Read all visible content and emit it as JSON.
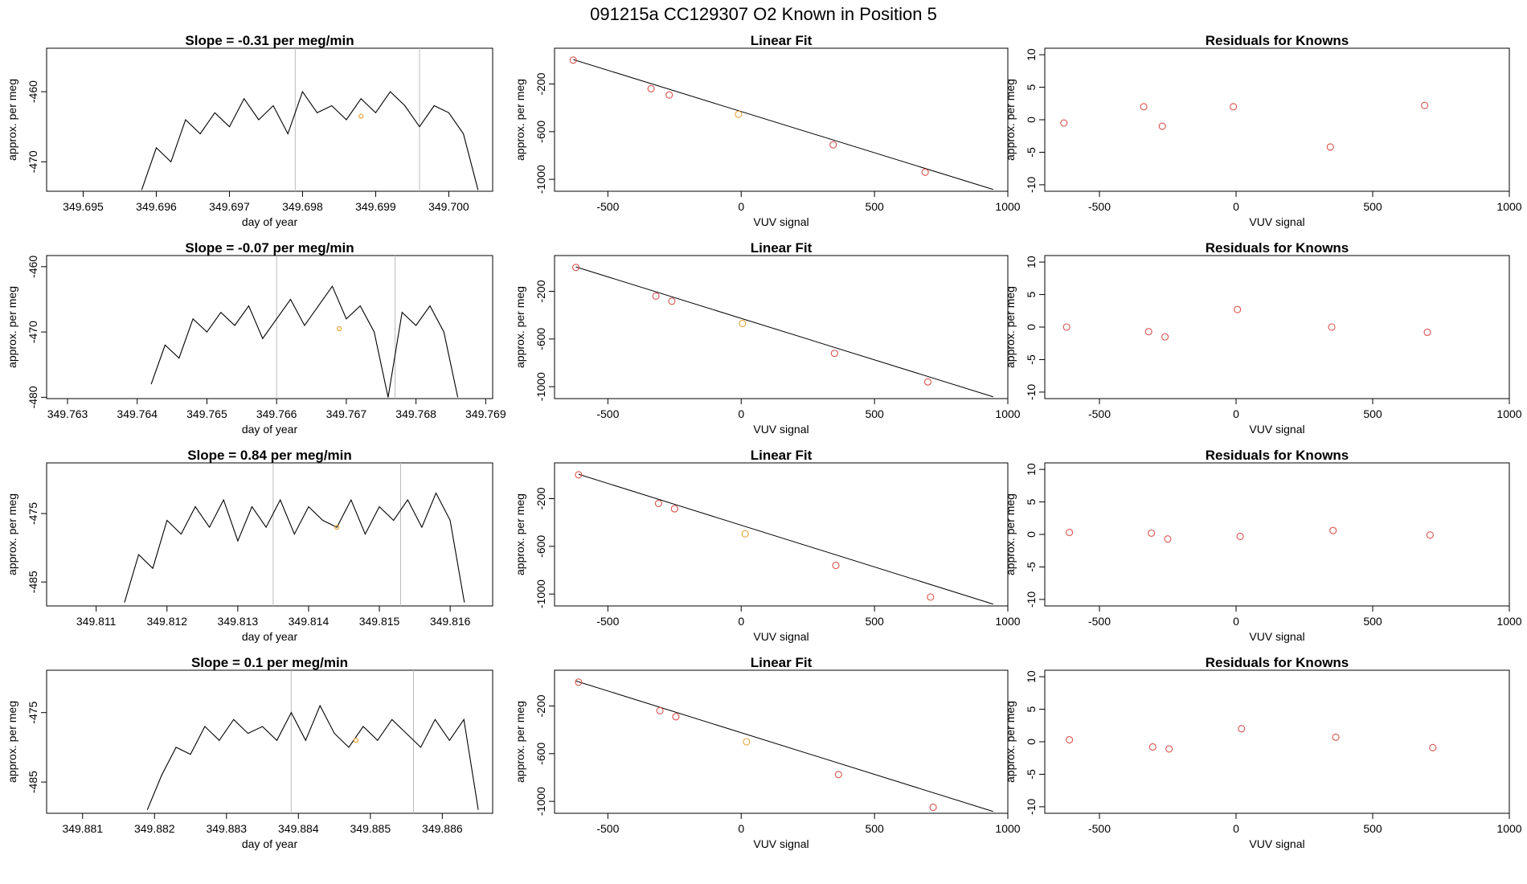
{
  "figure": {
    "title": "091215a      CC129307   O2 Known in Position  5"
  },
  "chart_data": [
    {
      "panel": "timeseries-1",
      "type": "line",
      "title": "Slope =  -0.31  per meg/min",
      "xlabel": "day of year",
      "ylabel": "approx. per meg",
      "xlim": [
        349.6945,
        349.7006
      ],
      "ylim": [
        -474.2,
        -453.8
      ],
      "xticks": [
        "349.695",
        "349.696",
        "349.697",
        "349.698",
        "349.699",
        "349.700"
      ],
      "yticks": [
        -460,
        -470
      ],
      "vlines": [
        349.6979,
        349.6996
      ],
      "highlight_point": {
        "x": 349.6988,
        "y": -463.5,
        "color": "#e8a33a"
      },
      "x": [
        349.6958,
        349.696,
        349.6962,
        349.6964,
        349.6966,
        349.6968,
        349.697,
        349.6972,
        349.6974,
        349.6976,
        349.6978,
        349.698,
        349.6982,
        349.6984,
        349.6986,
        349.6988,
        349.699,
        349.6992,
        349.6994,
        349.6996,
        349.6998,
        349.7,
        349.7002,
        349.7004
      ],
      "y": [
        -474,
        -468,
        -470,
        -464,
        -466,
        -463,
        -465,
        -461,
        -464,
        -462,
        -466,
        -460,
        -463,
        -462,
        -464,
        -461,
        -463,
        -460,
        -462,
        -465,
        -462,
        -463,
        -466,
        -474
      ]
    },
    {
      "panel": "linearfit-1",
      "type": "scatter",
      "title": "Linear Fit",
      "xlabel": "VUV signal",
      "ylabel": "approx. per meg",
      "xlim": [
        -700,
        1000
      ],
      "ylim": [
        -1100,
        100
      ],
      "xticks": [
        -500,
        0,
        500,
        1000
      ],
      "yticks": [
        -200,
        -600,
        -1000
      ],
      "fit_line": [
        [
          -630,
          5
        ],
        [
          945,
          -1085
        ]
      ],
      "points": [
        [
          -630,
          0
        ],
        [
          -338,
          -240
        ],
        [
          -270,
          -292
        ],
        [
          -10,
          -455
        ],
        [
          345,
          -710
        ],
        [
          690,
          -940
        ]
      ],
      "highlight_index": 3
    },
    {
      "panel": "residuals-1",
      "type": "scatter",
      "title": "Residuals for Knowns",
      "xlabel": "VUV signal",
      "ylabel": "approx. per meg",
      "xlim": [
        -700,
        1000
      ],
      "ylim": [
        -11,
        11
      ],
      "xticks": [
        -500,
        0,
        500,
        1000
      ],
      "yticks": [
        10,
        5,
        0,
        -5,
        -10
      ],
      "points": [
        [
          -630,
          -0.5
        ],
        [
          -338,
          2
        ],
        [
          -270,
          -1
        ],
        [
          -10,
          2
        ],
        [
          345,
          -4.2
        ],
        [
          690,
          2.2
        ]
      ]
    },
    {
      "panel": "timeseries-2",
      "type": "line",
      "title": "Slope =  -0.07  per meg/min",
      "xlabel": "day of year",
      "ylabel": "approx. per meg",
      "xlim": [
        349.7627,
        349.7691
      ],
      "ylim": [
        -480.2,
        -458.3
      ],
      "xticks": [
        "349.763",
        "349.764",
        "349.765",
        "349.766",
        "349.767",
        "349.768",
        "349.769"
      ],
      "yticks": [
        -460,
        -470,
        -480
      ],
      "vlines": [
        349.766,
        349.7677
      ],
      "highlight_point": {
        "x": 349.7669,
        "y": -469.5,
        "color": "#e8a33a"
      },
      "x": [
        349.7642,
        349.7644,
        349.7646,
        349.7648,
        349.765,
        349.7652,
        349.7654,
        349.7656,
        349.7658,
        349.766,
        349.7662,
        349.7664,
        349.7666,
        349.7668,
        349.767,
        349.7672,
        349.7674,
        349.7676,
        349.7678,
        349.768,
        349.7682,
        349.7684,
        349.7686
      ],
      "y": [
        -478,
        -472,
        -474,
        -468,
        -470,
        -467,
        -469,
        -466,
        -471,
        -468,
        -465,
        -469,
        -466,
        -463,
        -468,
        -466,
        -470,
        -480,
        -467,
        -469,
        -466,
        -470,
        -480
      ]
    },
    {
      "panel": "linearfit-2",
      "type": "scatter",
      "title": "Linear Fit",
      "xlabel": "VUV signal",
      "ylabel": "approx. per meg",
      "xlim": [
        -700,
        1000
      ],
      "ylim": [
        -1100,
        100
      ],
      "xticks": [
        -500,
        0,
        500,
        1000
      ],
      "yticks": [
        -200,
        -600,
        -1000
      ],
      "fit_line": [
        [
          -620,
          5
        ],
        [
          945,
          -1085
        ]
      ],
      "points": [
        [
          -620,
          0
        ],
        [
          -320,
          -240
        ],
        [
          -260,
          -283
        ],
        [
          5,
          -470
        ],
        [
          350,
          -720
        ],
        [
          700,
          -960
        ]
      ],
      "highlight_index": 3
    },
    {
      "panel": "residuals-2",
      "type": "scatter",
      "title": "Residuals for Knowns",
      "xlabel": "VUV signal",
      "ylabel": "approx. per meg",
      "xlim": [
        -700,
        1000
      ],
      "ylim": [
        -11,
        11
      ],
      "xticks": [
        -500,
        0,
        500,
        1000
      ],
      "yticks": [
        10,
        5,
        0,
        -5,
        -10
      ],
      "points": [
        [
          -620,
          0
        ],
        [
          -320,
          -0.7
        ],
        [
          -260,
          -1.5
        ],
        [
          5,
          2.7
        ],
        [
          350,
          0
        ],
        [
          700,
          -0.8
        ]
      ]
    },
    {
      "panel": "timeseries-3",
      "type": "line",
      "title": "Slope =  0.84  per meg/min",
      "xlabel": "day of year",
      "ylabel": "approx. per meg",
      "xlim": [
        349.8103,
        349.8166
      ],
      "ylim": [
        -488.5,
        -467.6
      ],
      "xticks": [
        "349.811",
        "349.812",
        "349.813",
        "349.814",
        "349.815",
        "349.816"
      ],
      "yticks": [
        -475,
        -485
      ],
      "vlines": [
        349.8135,
        349.8153
      ],
      "highlight_point": {
        "x": 349.8144,
        "y": -477,
        "color": "#e8a33a"
      },
      "x": [
        349.8114,
        349.8116,
        349.8118,
        349.812,
        349.8122,
        349.8124,
        349.8126,
        349.8128,
        349.813,
        349.8132,
        349.8134,
        349.8136,
        349.8138,
        349.814,
        349.8142,
        349.8144,
        349.8146,
        349.8148,
        349.815,
        349.8152,
        349.8154,
        349.8156,
        349.8158,
        349.816,
        349.8162
      ],
      "y": [
        -488,
        -481,
        -483,
        -476,
        -478,
        -474,
        -477,
        -473,
        -479,
        -474,
        -477,
        -473,
        -478,
        -474,
        -476,
        -477,
        -473,
        -478,
        -474,
        -476,
        -473,
        -477,
        -472,
        -476,
        -488
      ]
    },
    {
      "panel": "linearfit-3",
      "type": "scatter",
      "title": "Linear Fit",
      "xlabel": "VUV signal",
      "ylabel": "approx. per meg",
      "xlim": [
        -700,
        1000
      ],
      "ylim": [
        -1100,
        100
      ],
      "xticks": [
        -500,
        0,
        500,
        1000
      ],
      "yticks": [
        -200,
        -600,
        -1000
      ],
      "fit_line": [
        [
          -610,
          5
        ],
        [
          945,
          -1085
        ]
      ],
      "points": [
        [
          -610,
          0
        ],
        [
          -310,
          -240
        ],
        [
          -250,
          -285
        ],
        [
          15,
          -495
        ],
        [
          355,
          -760
        ],
        [
          710,
          -1025
        ]
      ],
      "highlight_index": 3
    },
    {
      "panel": "residuals-3",
      "type": "scatter",
      "title": "Residuals for Knowns",
      "xlabel": "VUV signal",
      "ylabel": "approx. per meg",
      "xlim": [
        -700,
        1000
      ],
      "ylim": [
        -11,
        11
      ],
      "xticks": [
        -500,
        0,
        500,
        1000
      ],
      "yticks": [
        10,
        5,
        0,
        -5,
        -10
      ],
      "points": [
        [
          -610,
          0.3
        ],
        [
          -310,
          0.2
        ],
        [
          -250,
          -0.7
        ],
        [
          15,
          -0.3
        ],
        [
          355,
          0.6
        ],
        [
          710,
          -0.1
        ]
      ]
    },
    {
      "panel": "timeseries-4",
      "type": "line",
      "title": "Slope =  0.1  per meg/min",
      "xlabel": "day of year",
      "ylabel": "approx. per meg",
      "xlim": [
        349.8805,
        349.8867
      ],
      "ylim": [
        -489.5,
        -468.9
      ],
      "xticks": [
        "349.881",
        "349.882",
        "349.883",
        "349.884",
        "349.885",
        "349.886"
      ],
      "yticks": [
        -475,
        -485
      ],
      "vlines": [
        349.8839,
        349.8856
      ],
      "highlight_point": {
        "x": 349.8848,
        "y": -479,
        "color": "#e8a33a"
      },
      "x": [
        349.8819,
        349.8821,
        349.8823,
        349.8825,
        349.8827,
        349.8829,
        349.8831,
        349.8833,
        349.8835,
        349.8837,
        349.8839,
        349.8841,
        349.8843,
        349.8845,
        349.8847,
        349.8849,
        349.8851,
        349.8853,
        349.8855,
        349.8857,
        349.8859,
        349.8861,
        349.8863,
        349.8865
      ],
      "y": [
        -489,
        -484,
        -480,
        -481,
        -477,
        -479,
        -476,
        -478,
        -477,
        -479,
        -475,
        -479,
        -474,
        -478,
        -480,
        -477,
        -479,
        -476,
        -478,
        -480,
        -476,
        -479,
        -476,
        -489
      ]
    },
    {
      "panel": "linearfit-4",
      "type": "scatter",
      "title": "Linear Fit",
      "xlabel": "VUV signal",
      "ylabel": "approx. per meg",
      "xlim": [
        -700,
        1000
      ],
      "ylim": [
        -1100,
        100
      ],
      "xticks": [
        -500,
        0,
        500,
        1000
      ],
      "yticks": [
        -200,
        -600,
        -1000
      ],
      "fit_line": [
        [
          -620,
          10
        ],
        [
          945,
          -1085
        ]
      ],
      "points": [
        [
          -610,
          0
        ],
        [
          -305,
          -240
        ],
        [
          -245,
          -290
        ],
        [
          20,
          -500
        ],
        [
          365,
          -775
        ],
        [
          720,
          -1050
        ]
      ],
      "highlight_index": 3
    },
    {
      "panel": "residuals-4",
      "type": "scatter",
      "title": "Residuals for Knowns",
      "xlabel": "VUV signal",
      "ylabel": "approx. per meg",
      "xlim": [
        -700,
        1000
      ],
      "ylim": [
        -11,
        11
      ],
      "xticks": [
        -500,
        0,
        500,
        1000
      ],
      "yticks": [
        10,
        5,
        0,
        -5,
        -10
      ],
      "points": [
        [
          -610,
          0.3
        ],
        [
          -305,
          -0.8
        ],
        [
          -245,
          -1.1
        ],
        [
          20,
          2
        ],
        [
          365,
          0.7
        ],
        [
          720,
          -0.9
        ]
      ]
    }
  ],
  "colors": {
    "line": "#000000",
    "fit_point": "#d9534f",
    "highlight": "#e8a33a",
    "vline": "#bbbbbb",
    "frame": "#000000"
  }
}
